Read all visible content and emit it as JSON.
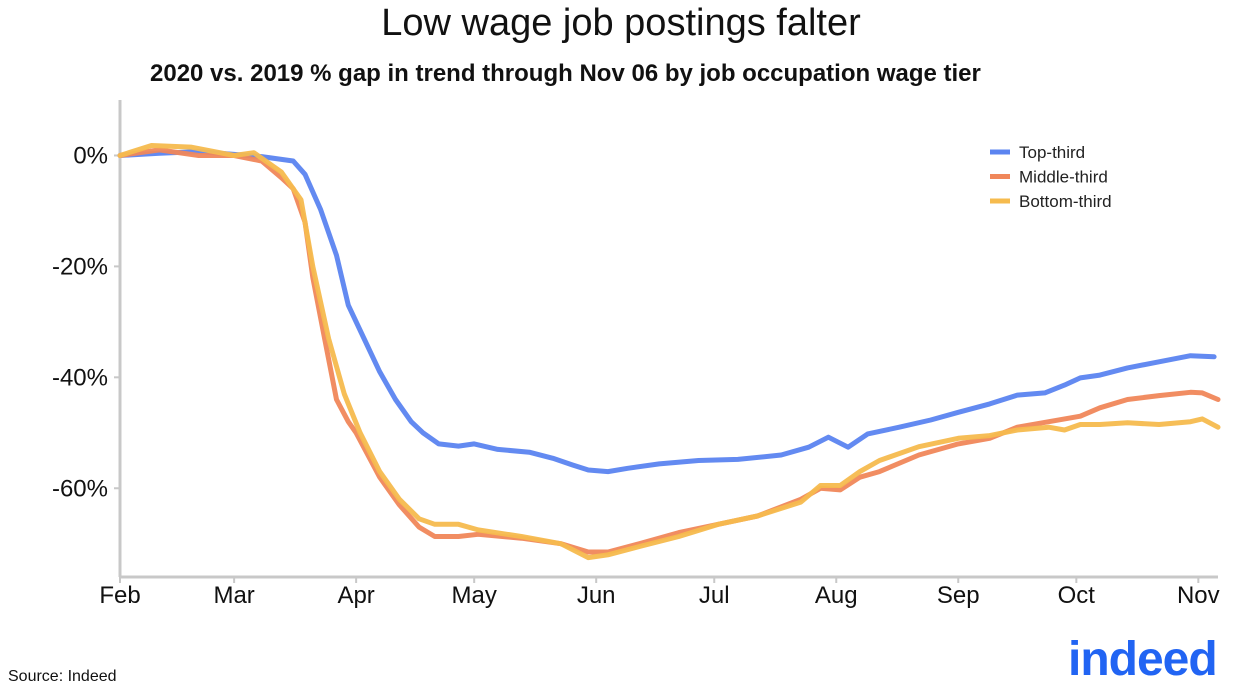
{
  "chart_data": {
    "type": "line",
    "title": "Low wage job postings falter",
    "subtitle": "2020 vs. 2019 % gap in trend through Nov 06 by job occupation wage tier",
    "xlabel": "",
    "ylabel": "",
    "x_unit": "days since Feb 1, 2020",
    "xlim": [
      0,
      279
    ],
    "ylim": [
      -76,
      10
    ],
    "x_ticks": [
      {
        "value": 0,
        "label": "Feb"
      },
      {
        "value": 29,
        "label": "Mar"
      },
      {
        "value": 60,
        "label": "Apr"
      },
      {
        "value": 90,
        "label": "May"
      },
      {
        "value": 121,
        "label": "Jun"
      },
      {
        "value": 151,
        "label": "Jul"
      },
      {
        "value": 182,
        "label": "Aug"
      },
      {
        "value": 213,
        "label": "Sep"
      },
      {
        "value": 243,
        "label": "Oct"
      },
      {
        "value": 274,
        "label": "Nov"
      }
    ],
    "y_ticks": [
      {
        "value": 0,
        "label": "0%"
      },
      {
        "value": -20,
        "label": "-20%"
      },
      {
        "value": -40,
        "label": "-40%"
      },
      {
        "value": -60,
        "label": "-60%"
      }
    ],
    "legend_position": "top-right",
    "series": [
      {
        "name": "Top-third",
        "color": "#5b84f0",
        "points": [
          [
            0,
            0
          ],
          [
            10,
            0.4
          ],
          [
            20,
            0.7
          ],
          [
            36,
            -0.2
          ],
          [
            44,
            -1
          ],
          [
            47,
            -3.4
          ],
          [
            51,
            -9.8
          ],
          [
            55,
            -18
          ],
          [
            58,
            -27
          ],
          [
            62,
            -33
          ],
          [
            66,
            -39
          ],
          [
            70,
            -44
          ],
          [
            74,
            -48
          ],
          [
            77,
            -50
          ],
          [
            81,
            -52
          ],
          [
            86,
            -52.4
          ],
          [
            90,
            -52
          ],
          [
            96,
            -53
          ],
          [
            104,
            -53.5
          ],
          [
            110,
            -54.6
          ],
          [
            115,
            -55.8
          ],
          [
            119,
            -56.7
          ],
          [
            124,
            -57
          ],
          [
            129,
            -56.4
          ],
          [
            137,
            -55.6
          ],
          [
            147,
            -55
          ],
          [
            157,
            -54.8
          ],
          [
            168,
            -54
          ],
          [
            175,
            -52.6
          ],
          [
            180,
            -50.8
          ],
          [
            185,
            -52.6
          ],
          [
            190,
            -50.2
          ],
          [
            198,
            -49
          ],
          [
            206,
            -47.7
          ],
          [
            213,
            -46.3
          ],
          [
            221,
            -44.8
          ],
          [
            228,
            -43.2
          ],
          [
            235,
            -42.8
          ],
          [
            240,
            -41.4
          ],
          [
            244,
            -40.1
          ],
          [
            249,
            -39.6
          ],
          [
            256,
            -38.3
          ],
          [
            264,
            -37.2
          ],
          [
            272,
            -36.1
          ],
          [
            278,
            -36.3
          ]
        ]
      },
      {
        "name": "Middle-third",
        "color": "#f0875a",
        "points": [
          [
            0,
            0
          ],
          [
            10,
            1
          ],
          [
            20,
            0
          ],
          [
            29,
            0
          ],
          [
            36,
            -1
          ],
          [
            41,
            -4
          ],
          [
            44,
            -6
          ],
          [
            47,
            -12
          ],
          [
            49,
            -22
          ],
          [
            52,
            -33
          ],
          [
            55,
            -44
          ],
          [
            58,
            -48
          ],
          [
            60,
            -50
          ],
          [
            66,
            -58
          ],
          [
            71,
            -63
          ],
          [
            76,
            -67
          ],
          [
            80,
            -68.7
          ],
          [
            86,
            -68.7
          ],
          [
            91,
            -68.3
          ],
          [
            102,
            -69
          ],
          [
            112,
            -70
          ],
          [
            119,
            -71.5
          ],
          [
            124,
            -71.5
          ],
          [
            132,
            -70
          ],
          [
            142,
            -68
          ],
          [
            152,
            -66.5
          ],
          [
            162,
            -65
          ],
          [
            173,
            -62
          ],
          [
            178,
            -60
          ],
          [
            183,
            -60.3
          ],
          [
            188,
            -58
          ],
          [
            193,
            -57
          ],
          [
            203,
            -54
          ],
          [
            213,
            -52
          ],
          [
            221,
            -51
          ],
          [
            228,
            -49
          ],
          [
            236,
            -48
          ],
          [
            244,
            -47
          ],
          [
            249,
            -45.5
          ],
          [
            256,
            -44
          ],
          [
            264,
            -43.3
          ],
          [
            272,
            -42.7
          ],
          [
            275,
            -42.8
          ],
          [
            279,
            -44
          ]
        ]
      },
      {
        "name": "Bottom-third",
        "color": "#f6bb4e",
        "points": [
          [
            0,
            0
          ],
          [
            8,
            1.8
          ],
          [
            18,
            1.5
          ],
          [
            29,
            0
          ],
          [
            34,
            0.5
          ],
          [
            41,
            -3
          ],
          [
            46,
            -8
          ],
          [
            49,
            -20
          ],
          [
            53,
            -33
          ],
          [
            57,
            -43
          ],
          [
            61,
            -50
          ],
          [
            66,
            -57
          ],
          [
            71,
            -62
          ],
          [
            76,
            -65.5
          ],
          [
            80,
            -66.5
          ],
          [
            86,
            -66.5
          ],
          [
            91,
            -67.5
          ],
          [
            102,
            -68.7
          ],
          [
            112,
            -70
          ],
          [
            119,
            -72.5
          ],
          [
            124,
            -72
          ],
          [
            132,
            -70.5
          ],
          [
            142,
            -68.7
          ],
          [
            152,
            -66.5
          ],
          [
            162,
            -65
          ],
          [
            173,
            -62.5
          ],
          [
            178,
            -59.5
          ],
          [
            183,
            -59.5
          ],
          [
            188,
            -57
          ],
          [
            193,
            -55
          ],
          [
            203,
            -52.5
          ],
          [
            213,
            -51
          ],
          [
            221,
            -50.5
          ],
          [
            228,
            -49.5
          ],
          [
            236,
            -49
          ],
          [
            240,
            -49.5
          ],
          [
            244,
            -48.5
          ],
          [
            249,
            -48.5
          ],
          [
            256,
            -48.2
          ],
          [
            264,
            -48.5
          ],
          [
            272,
            -48
          ],
          [
            275,
            -47.5
          ],
          [
            279,
            -49
          ]
        ]
      }
    ]
  },
  "source": "Source: Indeed",
  "logo_text": "indeed"
}
